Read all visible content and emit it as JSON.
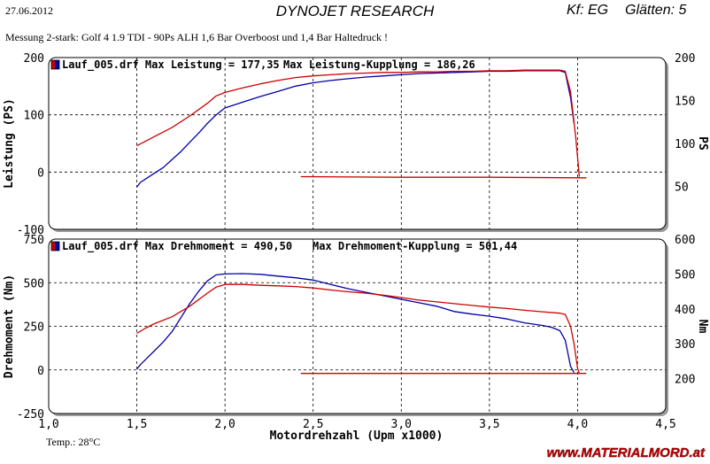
{
  "header": {
    "date": "27.06.2012",
    "title": "DYNOJET RESEARCH",
    "kf": "Kf: EG",
    "glatten": "Glätten: 5",
    "subtitle": "Messung 2-stark: Golf 4  1.9 TDI - 90Ps ALH   1,6 Bar Overboost und 1,4 Bar Haltedruck !"
  },
  "footer": {
    "temp": "Temp.: 28°C",
    "watermark": "www.MATERIALMORD.at"
  },
  "colors": {
    "blue": "#0000aa",
    "red": "#cc0000",
    "bg": "#ffffff",
    "border": "#000000"
  },
  "chart_data": [
    {
      "type": "line",
      "ylabel": "Leistung (PS)",
      "ylabel_right": "PS",
      "legend_text": "Lauf_005.drf Max Leistung = 177,35",
      "legend_text2": "Max Leistung-Kupplung = 186,26",
      "legend_placement": "top-left",
      "xlim": [
        1.0,
        4.5
      ],
      "ylim": [
        -100,
        200
      ],
      "ylim_right": [
        0,
        200
      ],
      "yticks": [
        "200",
        "100",
        "0",
        "-100"
      ],
      "yticks_right": [
        "200",
        "150",
        "100",
        "50"
      ],
      "grid": true,
      "series": [
        {
          "color": "#0000aa",
          "points": [
            [
              1.5,
              -26
            ],
            [
              1.52,
              -18
            ],
            [
              1.55,
              -12
            ],
            [
              1.6,
              -2
            ],
            [
              1.65,
              8
            ],
            [
              1.7,
              22
            ],
            [
              1.75,
              36
            ],
            [
              1.8,
              52
            ],
            [
              1.85,
              68
            ],
            [
              1.9,
              85
            ],
            [
              1.95,
              100
            ],
            [
              2.0,
              112
            ],
            [
              2.1,
              122
            ],
            [
              2.2,
              132
            ],
            [
              2.3,
              141
            ],
            [
              2.4,
              150
            ],
            [
              2.5,
              156
            ],
            [
              2.6,
              160
            ],
            [
              2.7,
              163
            ],
            [
              2.8,
              166
            ],
            [
              2.9,
              168
            ],
            [
              3.0,
              170
            ],
            [
              3.1,
              172
            ],
            [
              3.2,
              173
            ],
            [
              3.3,
              174
            ],
            [
              3.4,
              175
            ],
            [
              3.5,
              176
            ],
            [
              3.6,
              176
            ],
            [
              3.7,
              177
            ],
            [
              3.8,
              177
            ],
            [
              3.9,
              177
            ],
            [
              3.93,
              174
            ],
            [
              3.96,
              130
            ],
            [
              3.98,
              85
            ]
          ]
        },
        {
          "color": "#cc0000",
          "points": [
            [
              1.5,
              46
            ],
            [
              1.55,
              54
            ],
            [
              1.6,
              62
            ],
            [
              1.7,
              78
            ],
            [
              1.8,
              98
            ],
            [
              1.9,
              120
            ],
            [
              1.95,
              133
            ],
            [
              2.0,
              139
            ],
            [
              2.1,
              147
            ],
            [
              2.2,
              154
            ],
            [
              2.3,
              160
            ],
            [
              2.4,
              165
            ],
            [
              2.5,
              168
            ],
            [
              2.6,
              170
            ],
            [
              2.7,
              172
            ],
            [
              2.8,
              173
            ],
            [
              2.9,
              174
            ],
            [
              3.0,
              174
            ],
            [
              3.1,
              175
            ],
            [
              3.2,
              175
            ],
            [
              3.3,
              176
            ],
            [
              3.4,
              176
            ],
            [
              3.5,
              177
            ],
            [
              3.6,
              177
            ],
            [
              3.7,
              178
            ],
            [
              3.8,
              178
            ],
            [
              3.9,
              178
            ],
            [
              3.93,
              176
            ],
            [
              3.96,
              140
            ],
            [
              3.99,
              60
            ],
            [
              4.01,
              -8
            ]
          ]
        },
        {
          "color": "#cc0000",
          "points": [
            [
              2.43,
              -8
            ],
            [
              3.0,
              -9
            ],
            [
              3.5,
              -9
            ],
            [
              4.0,
              -10
            ],
            [
              4.05,
              -10
            ]
          ]
        }
      ]
    },
    {
      "type": "line",
      "ylabel": "Drehmoment (Nm)",
      "ylabel_right": "Nm",
      "xlabel": "Motordrehzahl (Upm x1000)",
      "legend_text": "Lauf_005.drf Max Drehmoment = 490,50",
      "legend_text2": "Max Drehmoment-Kupplung = 501,44",
      "legend_placement": "top-left",
      "xlim": [
        1.0,
        4.5
      ],
      "ylim": [
        -250,
        750
      ],
      "ylim_right": [
        100,
        600
      ],
      "yticks": [
        "750",
        "500",
        "250",
        "0",
        "-250"
      ],
      "yticks_right": [
        "600",
        "500",
        "400",
        "300",
        "200"
      ],
      "xticks": [
        "1,0",
        "1,5",
        "2,0",
        "2,5",
        "3,0",
        "3,5",
        "4,0",
        "4,5"
      ],
      "grid": true,
      "series": [
        {
          "color": "#0000aa",
          "points": [
            [
              1.5,
              5
            ],
            [
              1.52,
              30
            ],
            [
              1.55,
              60
            ],
            [
              1.6,
              110
            ],
            [
              1.65,
              160
            ],
            [
              1.7,
              220
            ],
            [
              1.75,
              300
            ],
            [
              1.8,
              380
            ],
            [
              1.85,
              450
            ],
            [
              1.9,
              510
            ],
            [
              1.95,
              545
            ],
            [
              2.0,
              550
            ],
            [
              2.1,
              552
            ],
            [
              2.2,
              548
            ],
            [
              2.3,
              538
            ],
            [
              2.4,
              528
            ],
            [
              2.5,
              515
            ],
            [
              2.6,
              490
            ],
            [
              2.7,
              465
            ],
            [
              2.8,
              445
            ],
            [
              2.9,
              425
            ],
            [
              3.0,
              405
            ],
            [
              3.1,
              385
            ],
            [
              3.2,
              365
            ],
            [
              3.3,
              335
            ],
            [
              3.4,
              320
            ],
            [
              3.5,
              308
            ],
            [
              3.6,
              292
            ],
            [
              3.7,
              270
            ],
            [
              3.8,
              255
            ],
            [
              3.85,
              245
            ],
            [
              3.9,
              225
            ],
            [
              3.93,
              170
            ],
            [
              3.96,
              20
            ],
            [
              3.98,
              -15
            ]
          ]
        },
        {
          "color": "#cc0000",
          "points": [
            [
              1.5,
              210
            ],
            [
              1.55,
              240
            ],
            [
              1.6,
              265
            ],
            [
              1.7,
              305
            ],
            [
              1.8,
              365
            ],
            [
              1.9,
              440
            ],
            [
              1.95,
              475
            ],
            [
              2.0,
              490
            ],
            [
              2.1,
              490
            ],
            [
              2.2,
              485
            ],
            [
              2.3,
              482
            ],
            [
              2.4,
              478
            ],
            [
              2.5,
              470
            ],
            [
              2.6,
              458
            ],
            [
              2.7,
              448
            ],
            [
              2.8,
              440
            ],
            [
              2.9,
              428
            ],
            [
              3.0,
              415
            ],
            [
              3.1,
              400
            ],
            [
              3.2,
              390
            ],
            [
              3.3,
              380
            ],
            [
              3.4,
              370
            ],
            [
              3.5,
              360
            ],
            [
              3.6,
              352
            ],
            [
              3.7,
              342
            ],
            [
              3.8,
              333
            ],
            [
              3.9,
              325
            ],
            [
              3.93,
              318
            ],
            [
              3.96,
              250
            ],
            [
              3.98,
              150
            ],
            [
              4.0,
              10
            ],
            [
              4.01,
              -20
            ]
          ]
        },
        {
          "color": "#cc0000",
          "points": [
            [
              2.43,
              -20
            ],
            [
              3.0,
              -20
            ],
            [
              3.5,
              -20
            ],
            [
              4.0,
              -20
            ],
            [
              4.05,
              -20
            ]
          ]
        }
      ]
    }
  ]
}
